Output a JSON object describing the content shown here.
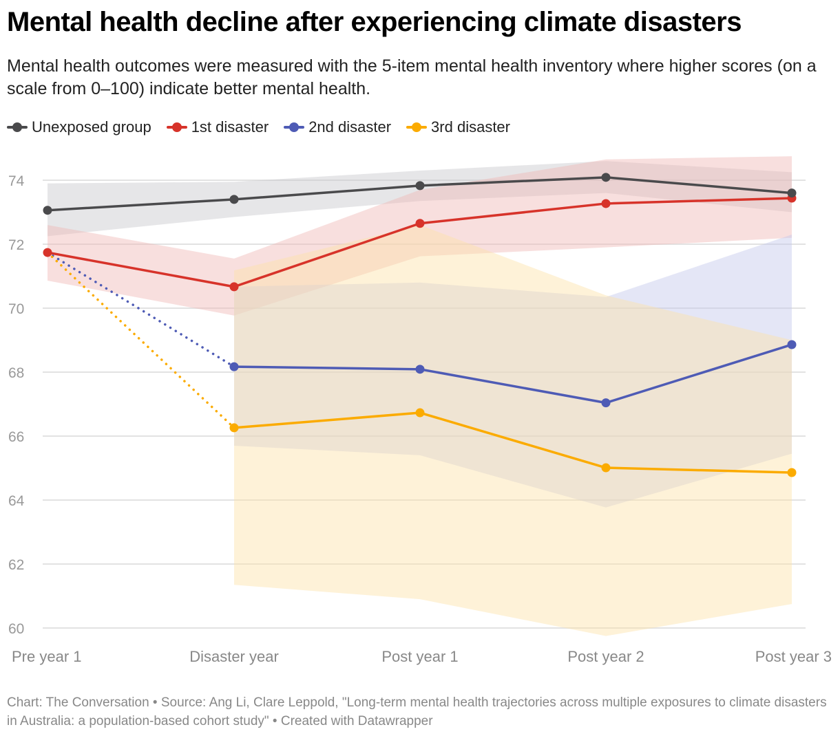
{
  "header": {
    "title": "Mental health decline after experiencing climate disasters",
    "subtitle": "Mental health outcomes were measured with the 5-item mental health inventory where higher scores (on a scale from 0–100) indicate better mental health."
  },
  "footer": {
    "text": "Chart: The Conversation • Source: Ang Li, Clare Leppold, \"Long-term mental health trajectories across multiple exposures to climate disasters in Australia: a population-based cohort study\" • Created with Datawrapper"
  },
  "chart_data": {
    "type": "line",
    "title": "Mental health decline after experiencing climate disasters",
    "xlabel": "",
    "ylabel": "",
    "categories": [
      "Pre year 1",
      "Disaster year",
      "Post year 1",
      "Post year 2",
      "Post year 3"
    ],
    "ylim": [
      60,
      74
    ],
    "yticks": [
      60,
      62,
      64,
      66,
      68,
      70,
      72,
      74
    ],
    "grid": true,
    "legend_position": "top-left",
    "series": [
      {
        "name": "Unexposed group",
        "color": "#4a4a4c",
        "band_color": "#c8c8cc",
        "values": [
          73.06,
          73.4,
          73.83,
          74.09,
          73.6
        ],
        "ci_upper": [
          73.9,
          73.95,
          74.3,
          74.6,
          74.25
        ],
        "ci_lower": [
          72.25,
          72.85,
          73.35,
          73.6,
          73.0
        ],
        "dotted_from_first": false
      },
      {
        "name": "1st disaster",
        "color": "#d7332a",
        "band_color": "#f0b8b6",
        "values": [
          71.74,
          70.67,
          72.65,
          73.27,
          73.44
        ],
        "ci_upper": [
          72.6,
          71.55,
          73.7,
          74.65,
          74.75
        ],
        "ci_lower": [
          70.86,
          69.77,
          71.62,
          71.9,
          72.2
        ],
        "dotted_from_first": false
      },
      {
        "name": "2nd disaster",
        "color": "#4e5bb5",
        "band_color": "#c4c8ea",
        "values": [
          71.74,
          68.17,
          68.09,
          67.04,
          68.86
        ],
        "ci_upper": [
          null,
          70.67,
          70.8,
          70.35,
          72.3
        ],
        "ci_lower": [
          null,
          65.7,
          65.4,
          63.77,
          65.45
        ],
        "dotted_from_first": true
      },
      {
        "name": "3rd disaster",
        "color": "#fbab00",
        "band_color": "#fde2a8",
        "values": [
          71.74,
          66.26,
          66.73,
          65.01,
          64.86
        ],
        "ci_upper": [
          null,
          71.18,
          72.6,
          70.4,
          69.0
        ],
        "ci_lower": [
          null,
          61.35,
          60.9,
          59.75,
          60.75
        ],
        "dotted_from_first": true
      }
    ]
  }
}
